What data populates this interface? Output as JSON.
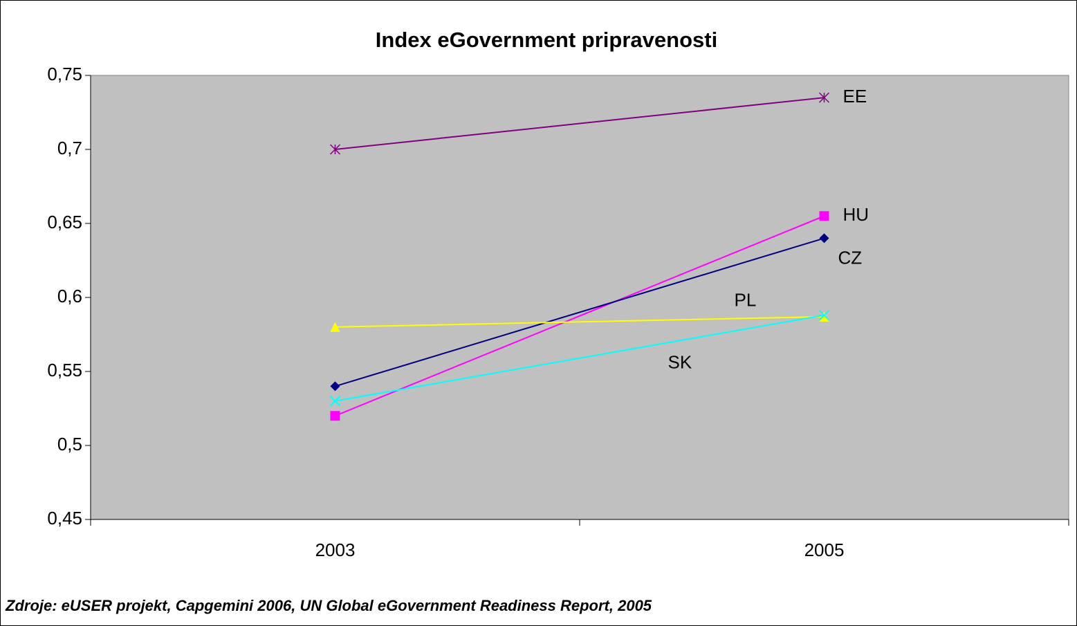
{
  "chart_data": {
    "type": "line",
    "title": "Index eGovernment pripravenosti",
    "note": "Zdroje: eUSER projekt, Capgemini 2006, UN Global eGovernment Readiness Report, 2005",
    "categories": [
      "2003",
      "2005"
    ],
    "series": [
      {
        "name": "EE",
        "color": "#800080",
        "marker": "star",
        "values": [
          0.7,
          0.735
        ]
      },
      {
        "name": "HU",
        "color": "#ff00ff",
        "marker": "square",
        "values": [
          0.52,
          0.655
        ]
      },
      {
        "name": "CZ",
        "color": "#000080",
        "marker": "diamond",
        "values": [
          0.54,
          0.64
        ]
      },
      {
        "name": "PL",
        "color": "#ffff00",
        "marker": "triangle",
        "values": [
          0.58,
          0.587
        ]
      },
      {
        "name": "SK",
        "color": "#00ffff",
        "marker": "x",
        "values": [
          0.53,
          0.588
        ]
      }
    ],
    "ylim": [
      0.45,
      0.75
    ],
    "yticks": [
      {
        "value": 0.45,
        "label": "0,45"
      },
      {
        "value": 0.5,
        "label": "0,5"
      },
      {
        "value": 0.55,
        "label": "0,55"
      },
      {
        "value": 0.6,
        "label": "0,6"
      },
      {
        "value": 0.65,
        "label": "0,65"
      },
      {
        "value": 0.7,
        "label": "0,7"
      },
      {
        "value": 0.75,
        "label": "0,75"
      }
    ],
    "plot_background": "#c0c0c0"
  }
}
